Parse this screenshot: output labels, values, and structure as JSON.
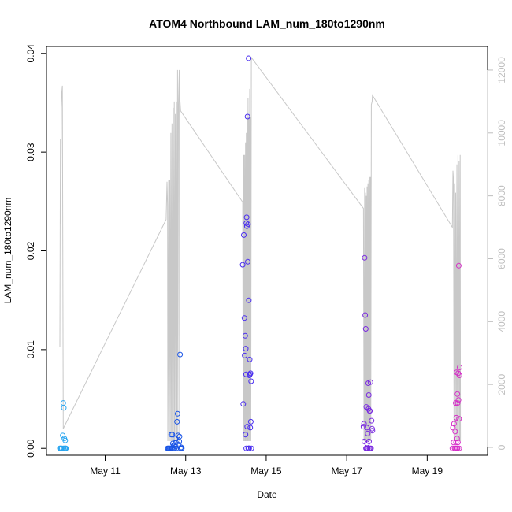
{
  "chart_data": {
    "type": "scatter",
    "title": "ATOM4 Northbound LAM_num_180to1290nm",
    "xlabel": "Date",
    "ylabel": "LAM_num_180to1290nm",
    "xlim": [
      "2024-05-09T13:00",
      "2024-05-20T12:00"
    ],
    "ylim": [
      -0.0007,
      0.0407
    ],
    "y2lim": [
      -250,
      12750
    ],
    "x_ticks": [
      {
        "date": "2024-05-11",
        "label": "May 11"
      },
      {
        "date": "2024-05-13",
        "label": "May 13"
      },
      {
        "date": "2024-05-15",
        "label": "May 15"
      },
      {
        "date": "2024-05-17",
        "label": "May 17"
      },
      {
        "date": "2024-05-19",
        "label": "May 19"
      }
    ],
    "y_ticks": [
      {
        "value": 0.0,
        "label": "0.00"
      },
      {
        "value": 0.01,
        "label": "0.01"
      },
      {
        "value": 0.02,
        "label": "0.02"
      },
      {
        "value": 0.03,
        "label": "0.03"
      },
      {
        "value": 0.04,
        "label": "0.04"
      }
    ],
    "y2_ticks": [
      {
        "value": 0,
        "label": "0"
      },
      {
        "value": 2000,
        "label": "2000"
      },
      {
        "value": 4000,
        "label": "4000"
      },
      {
        "value": 6000,
        "label": "6000"
      },
      {
        "value": 8000,
        "label": "8000"
      },
      {
        "value": 10000,
        "label": "10000"
      },
      {
        "value": 12000,
        "label": "12000"
      }
    ],
    "grid": false,
    "colors": {
      "axis": "#000000",
      "secondary_axis": "#bebebe",
      "line": "#c8c8c8"
    },
    "series": [
      {
        "color": "#2aa6f0",
        "points": [
          [
            "2024-05-09T21:00",
            0.0
          ],
          [
            "2024-05-09T21:40",
            0.0
          ],
          [
            "2024-05-09T22:10",
            0.0
          ],
          [
            "2024-05-09T22:40",
            0.0013
          ],
          [
            "2024-05-09T23:00",
            0.0046
          ],
          [
            "2024-05-09T23:20",
            0.0041
          ],
          [
            "2024-05-09T23:40",
            0.001
          ],
          [
            "2024-05-09T23:50",
            0.0
          ],
          [
            "2024-05-10T00:10",
            0.0008
          ],
          [
            "2024-05-10T00:20",
            0.0
          ],
          [
            "2024-05-10T00:40",
            0.0
          ],
          [
            "2024-05-09T21:20",
            0.0
          ],
          [
            "2024-05-09T23:10",
            0.0
          ],
          [
            "2024-05-10T00:00",
            0.0
          ]
        ]
      },
      {
        "color": "#1a55e6",
        "points": [
          [
            "2024-05-12T13:10",
            0.0
          ],
          [
            "2024-05-12T13:40",
            0.0
          ],
          [
            "2024-05-12T14:00",
            0.0
          ],
          [
            "2024-05-12T14:30",
            0.0
          ],
          [
            "2024-05-12T15:00",
            0.0
          ],
          [
            "2024-05-12T15:20",
            0.0014
          ],
          [
            "2024-05-12T15:40",
            0.0
          ],
          [
            "2024-05-12T16:00",
            0.0014
          ],
          [
            "2024-05-12T16:20",
            0.0005
          ],
          [
            "2024-05-12T16:40",
            0.0
          ],
          [
            "2024-05-12T17:10",
            0.0003
          ],
          [
            "2024-05-12T17:30",
            0.0
          ],
          [
            "2024-05-12T17:50",
            0.001
          ],
          [
            "2024-05-12T18:10",
            0.0006
          ],
          [
            "2024-05-12T18:30",
            0.0
          ],
          [
            "2024-05-12T18:50",
            0.0027
          ],
          [
            "2024-05-12T19:10",
            0.0035
          ],
          [
            "2024-05-12T19:30",
            0.0013
          ],
          [
            "2024-05-12T19:50",
            0.0004
          ],
          [
            "2024-05-12T20:10",
            0.0007
          ],
          [
            "2024-05-12T20:40",
            0.0095
          ],
          [
            "2024-05-12T21:00",
            0.0
          ],
          [
            "2024-05-12T21:20",
            0.0001
          ],
          [
            "2024-05-12T21:40",
            0.0
          ],
          [
            "2024-05-12T20:20",
            0.0012
          ],
          [
            "2024-05-12T16:50",
            0.0003
          ],
          [
            "2024-05-12T18:00",
            0.0002
          ]
        ]
      },
      {
        "color": "#4a2ef0",
        "points": [
          [
            "2024-05-14T10:00",
            0.0186
          ],
          [
            "2024-05-14T10:20",
            0.0045
          ],
          [
            "2024-05-14T10:40",
            0.0216
          ],
          [
            "2024-05-14T11:00",
            0.0132
          ],
          [
            "2024-05-14T11:10",
            0.0094
          ],
          [
            "2024-05-14T11:30",
            0.0114
          ],
          [
            "2024-05-14T11:40",
            0.0014
          ],
          [
            "2024-05-14T12:00",
            0.0075
          ],
          [
            "2024-05-14T12:10",
            0.0228
          ],
          [
            "2024-05-14T12:20",
            0.0234
          ],
          [
            "2024-05-14T12:30",
            0.0225
          ],
          [
            "2024-05-14T12:40",
            0.0022
          ],
          [
            "2024-05-14T12:50",
            0.0336
          ],
          [
            "2024-05-14T13:00",
            0.0189
          ],
          [
            "2024-05-14T13:10",
            0.0227
          ],
          [
            "2024-05-14T13:20",
            0.0
          ],
          [
            "2024-05-14T13:30",
            0.0395
          ],
          [
            "2024-05-14T13:40",
            0.015
          ],
          [
            "2024-05-14T13:50",
            0.0
          ],
          [
            "2024-05-14T14:00",
            0.0074
          ],
          [
            "2024-05-14T14:10",
            0.009
          ],
          [
            "2024-05-14T14:20",
            0.0075
          ],
          [
            "2024-05-14T14:30",
            0.0021
          ],
          [
            "2024-05-14T14:40",
            0.0076
          ],
          [
            "2024-05-14T14:50",
            0.0027
          ],
          [
            "2024-05-14T15:00",
            0.0068
          ],
          [
            "2024-05-14T15:10",
            0.0
          ],
          [
            "2024-05-14T11:50",
            0.0101
          ],
          [
            "2024-05-14T12:05",
            0.0
          ],
          [
            "2024-05-14T13:45",
            0.0
          ]
        ]
      },
      {
        "color": "#7a2ae0",
        "points": [
          [
            "2024-05-17T10:00",
            0.0022
          ],
          [
            "2024-05-17T10:20",
            0.0025
          ],
          [
            "2024-05-17T10:30",
            0.0007
          ],
          [
            "2024-05-17T10:40",
            0.0193
          ],
          [
            "2024-05-17T11:00",
            0.0135
          ],
          [
            "2024-05-17T11:20",
            0.0121
          ],
          [
            "2024-05-17T11:30",
            0.0
          ],
          [
            "2024-05-17T11:40",
            0.0042
          ],
          [
            "2024-05-17T12:00",
            0.0021
          ],
          [
            "2024-05-17T12:10",
            0.0005
          ],
          [
            "2024-05-17T12:20",
            0.0
          ],
          [
            "2024-05-17T12:30",
            0.0015
          ],
          [
            "2024-05-17T12:50",
            0.0066
          ],
          [
            "2024-05-17T13:00",
            0.004
          ],
          [
            "2024-05-17T13:10",
            0.0054
          ],
          [
            "2024-05-17T13:20",
            0.0007
          ],
          [
            "2024-05-17T13:30",
            0.0
          ],
          [
            "2024-05-17T13:40",
            0.0038
          ],
          [
            "2024-05-17T13:50",
            0.0038
          ],
          [
            "2024-05-17T14:00",
            0.0
          ],
          [
            "2024-05-17T14:10",
            0.0067
          ],
          [
            "2024-05-17T14:30",
            0.0
          ],
          [
            "2024-05-17T14:50",
            0.0028
          ],
          [
            "2024-05-17T15:10",
            0.002
          ],
          [
            "2024-05-17T15:20",
            0.0018
          ],
          [
            "2024-05-17T12:40",
            0.0
          ],
          [
            "2024-05-17T11:50",
            0.0
          ]
        ]
      },
      {
        "color": "#d62ec8",
        "points": [
          [
            "2024-05-19T15:00",
            0.0
          ],
          [
            "2024-05-19T15:20",
            0.0021
          ],
          [
            "2024-05-19T15:40",
            0.0006
          ],
          [
            "2024-05-19T16:00",
            0.0025
          ],
          [
            "2024-05-19T16:20",
            0.0
          ],
          [
            "2024-05-19T16:40",
            0.0017
          ],
          [
            "2024-05-19T17:00",
            0.0046
          ],
          [
            "2024-05-19T17:10",
            0.0006
          ],
          [
            "2024-05-19T17:20",
            0.0031
          ],
          [
            "2024-05-19T17:30",
            0.0077
          ],
          [
            "2024-05-19T17:40",
            0.0
          ],
          [
            "2024-05-19T17:50",
            0.001
          ],
          [
            "2024-05-19T18:00",
            0.0055
          ],
          [
            "2024-05-19T18:10",
            0.0046
          ],
          [
            "2024-05-19T18:20",
            0.0006
          ],
          [
            "2024-05-19T18:30",
            0.0076
          ],
          [
            "2024-05-19T18:40",
            0.0049
          ],
          [
            "2024-05-19T18:50",
            0.0185
          ],
          [
            "2024-05-19T19:00",
            0.003
          ],
          [
            "2024-05-19T19:10",
            0.0074
          ],
          [
            "2024-05-19T19:20",
            0.0082
          ],
          [
            "2024-05-19T16:50",
            0.0
          ],
          [
            "2024-05-19T18:05",
            0.0
          ],
          [
            "2024-05-19T19:05",
            0.0
          ]
        ]
      }
    ],
    "secondary_line": [
      [
        "2024-05-09T21:00",
        3200
      ],
      [
        "2024-05-09T21:20",
        9800
      ],
      [
        "2024-05-09T21:35",
        7100
      ],
      [
        "2024-05-09T21:50",
        10800
      ],
      [
        "2024-05-09T22:10",
        11300
      ],
      [
        "2024-05-09T22:30",
        11500
      ],
      [
        "2024-05-09T23:00",
        600
      ],
      [
        "2024-05-12T12:20",
        7250
      ],
      [
        "2024-05-12T12:50",
        8450
      ],
      [
        "2024-05-12T13:10",
        7700
      ],
      [
        "2024-05-12T13:20",
        200
      ],
      [
        "2024-05-12T13:50",
        8500
      ],
      [
        "2024-05-12T14:00",
        200
      ],
      [
        "2024-05-12T14:30",
        8500
      ],
      [
        "2024-05-12T14:40",
        200
      ],
      [
        "2024-05-12T15:10",
        10000
      ],
      [
        "2024-05-12T15:20",
        200
      ],
      [
        "2024-05-12T15:50",
        10300
      ],
      [
        "2024-05-12T16:00",
        200
      ],
      [
        "2024-05-12T16:30",
        10800
      ],
      [
        "2024-05-12T16:40",
        200
      ],
      [
        "2024-05-12T17:10",
        11000
      ],
      [
        "2024-05-12T17:20",
        200
      ],
      [
        "2024-05-12T17:50",
        10600
      ],
      [
        "2024-05-12T18:00",
        200
      ],
      [
        "2024-05-12T18:30",
        11000
      ],
      [
        "2024-05-12T18:40",
        200
      ],
      [
        "2024-05-12T19:10",
        12000
      ],
      [
        "2024-05-12T19:20",
        200
      ],
      [
        "2024-05-12T19:40",
        10900
      ],
      [
        "2024-05-12T20:10",
        12000
      ],
      [
        "2024-05-12T20:20",
        200
      ],
      [
        "2024-05-12T20:30",
        11100
      ],
      [
        "2024-05-12T21:00",
        10700
      ],
      [
        "2024-05-14T10:00",
        7800
      ],
      [
        "2024-05-14T10:20",
        200
      ],
      [
        "2024-05-14T10:40",
        9300
      ],
      [
        "2024-05-14T10:50",
        200
      ],
      [
        "2024-05-14T11:10",
        9300
      ],
      [
        "2024-05-14T11:20",
        200
      ],
      [
        "2024-05-14T11:40",
        9700
      ],
      [
        "2024-05-14T11:50",
        200
      ],
      [
        "2024-05-14T12:10",
        10000
      ],
      [
        "2024-05-14T12:20",
        200
      ],
      [
        "2024-05-14T12:40",
        10500
      ],
      [
        "2024-05-14T12:50",
        200
      ],
      [
        "2024-05-14T13:10",
        11100
      ],
      [
        "2024-05-14T13:20",
        200
      ],
      [
        "2024-05-14T13:40",
        10500
      ],
      [
        "2024-05-14T13:50",
        200
      ],
      [
        "2024-05-14T14:10",
        11400
      ],
      [
        "2024-05-14T14:20",
        200
      ],
      [
        "2024-05-14T14:40",
        10500
      ],
      [
        "2024-05-14T14:50",
        200
      ],
      [
        "2024-05-14T15:10",
        12400
      ],
      [
        "2024-05-17T10:00",
        7600
      ],
      [
        "2024-05-17T10:20",
        200
      ],
      [
        "2024-05-17T10:40",
        8250
      ],
      [
        "2024-05-17T10:50",
        200
      ],
      [
        "2024-05-17T11:10",
        8100
      ],
      [
        "2024-05-17T11:20",
        200
      ],
      [
        "2024-05-17T11:40",
        8000
      ],
      [
        "2024-05-17T11:50",
        200
      ],
      [
        "2024-05-17T12:10",
        8300
      ],
      [
        "2024-05-17T12:20",
        200
      ],
      [
        "2024-05-17T12:40",
        8400
      ],
      [
        "2024-05-17T12:50",
        200
      ],
      [
        "2024-05-17T13:10",
        8500
      ],
      [
        "2024-05-17T13:20",
        200
      ],
      [
        "2024-05-17T13:40",
        8600
      ],
      [
        "2024-05-17T13:50",
        200
      ],
      [
        "2024-05-17T14:10",
        8600
      ],
      [
        "2024-05-17T14:20",
        200
      ],
      [
        "2024-05-17T14:40",
        10900
      ],
      [
        "2024-05-17T15:10",
        11000
      ],
      [
        "2024-05-17T15:20",
        11200
      ],
      [
        "2024-05-19T15:00",
        7000
      ],
      [
        "2024-05-19T15:20",
        8800
      ],
      [
        "2024-05-19T15:40",
        8500
      ],
      [
        "2024-05-19T16:00",
        200
      ],
      [
        "2024-05-19T16:20",
        8400
      ],
      [
        "2024-05-19T16:40",
        200
      ],
      [
        "2024-05-19T17:00",
        8100
      ],
      [
        "2024-05-19T17:20",
        200
      ],
      [
        "2024-05-19T17:40",
        9000
      ],
      [
        "2024-05-19T18:00",
        200
      ],
      [
        "2024-05-19T18:20",
        9300
      ],
      [
        "2024-05-19T18:40",
        200
      ],
      [
        "2024-05-19T19:00",
        9100
      ],
      [
        "2024-05-19T19:20",
        200
      ],
      [
        "2024-05-19T19:40",
        9300
      ],
      [
        "2024-05-19T19:50",
        200
      ]
    ]
  }
}
